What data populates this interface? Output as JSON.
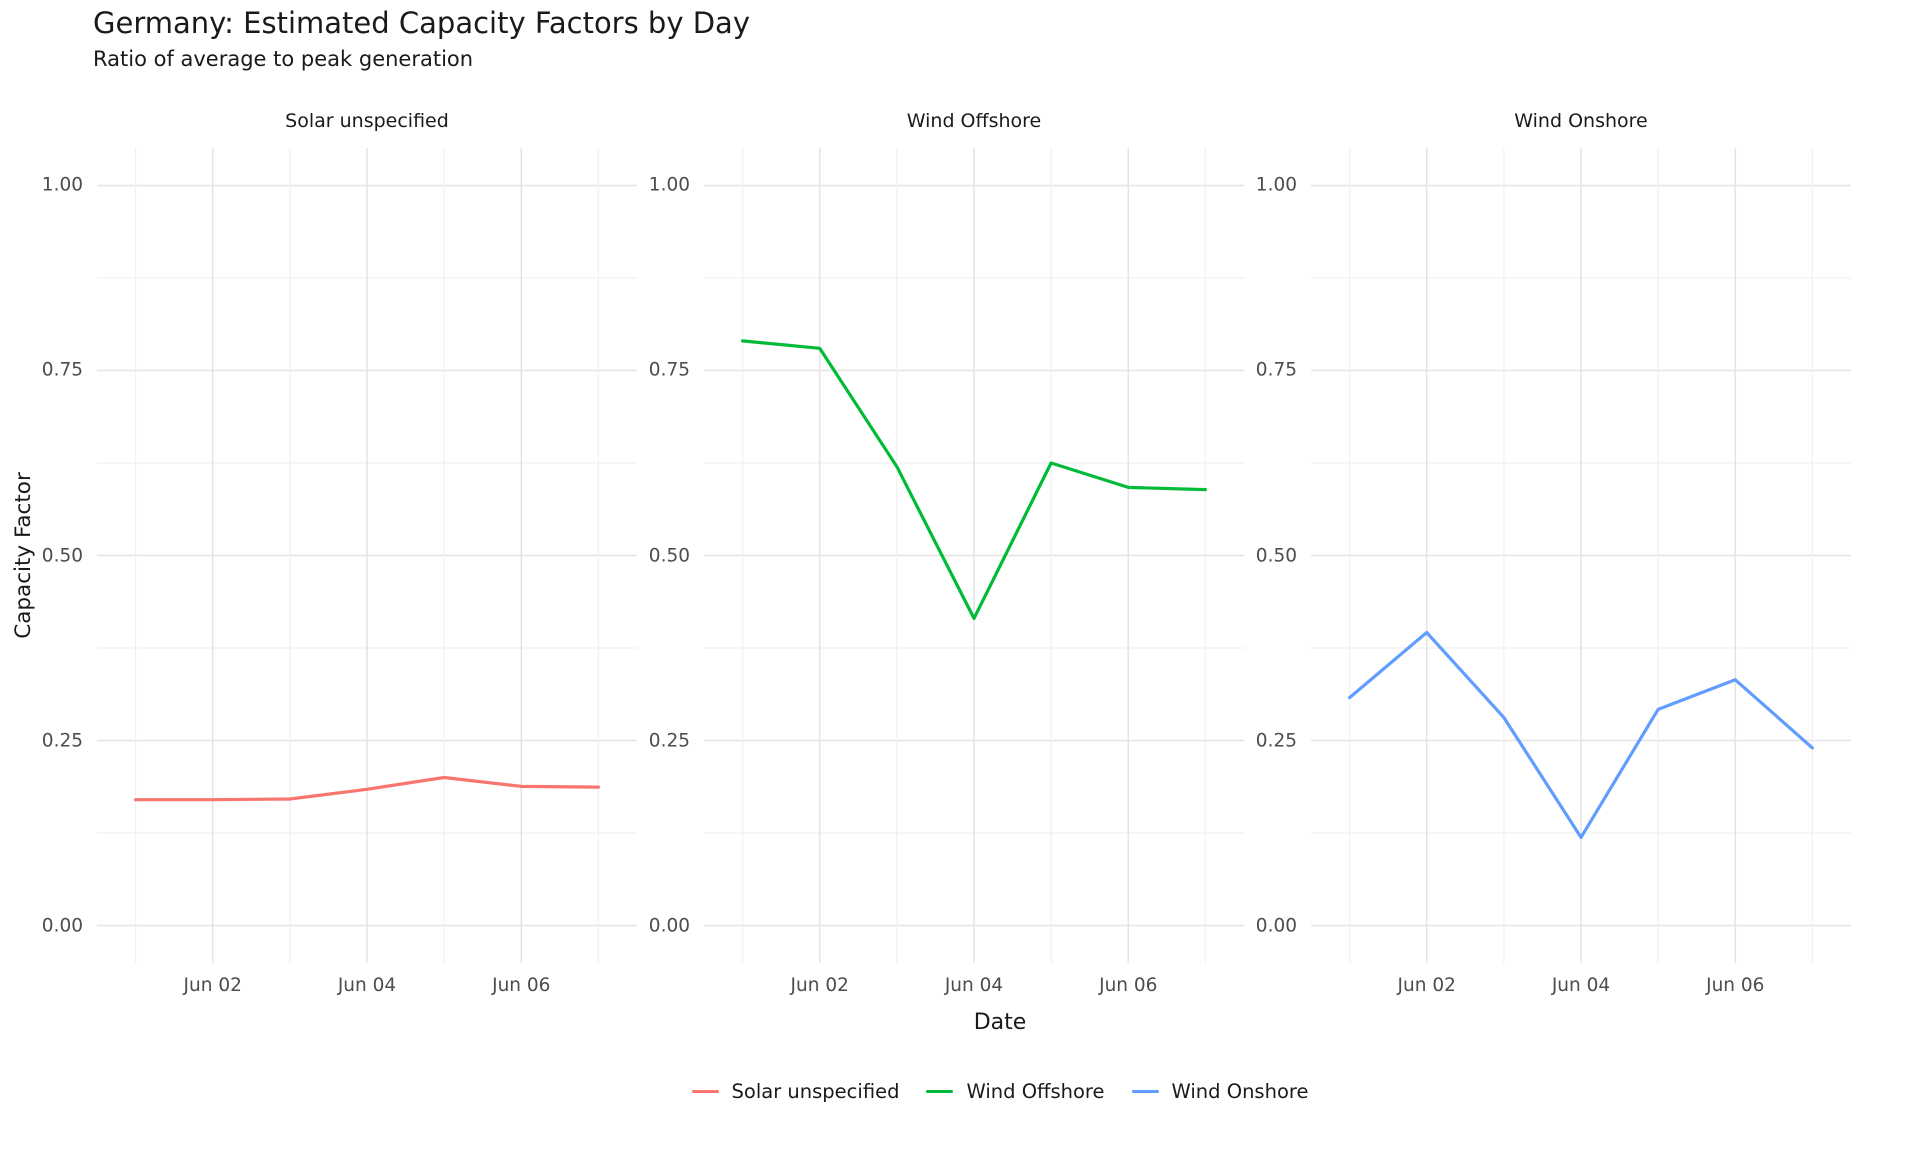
{
  "chart_data": {
    "type": "line",
    "title": "Germany: Estimated Capacity Factors by Day",
    "subtitle": "Ratio of average to peak generation",
    "xlabel": "Date",
    "ylabel": "Capacity Factor",
    "ylim": [
      0,
      1
    ],
    "grid": true,
    "legend_position": "bottom",
    "x": [
      "Jun 01",
      "Jun 02",
      "Jun 03",
      "Jun 04",
      "Jun 05",
      "Jun 06",
      "Jun 07"
    ],
    "y_ticks": [
      {
        "label": "1.00",
        "value": 1.0
      },
      {
        "label": "0.75",
        "value": 0.75
      },
      {
        "label": "0.50",
        "value": 0.5
      },
      {
        "label": "0.25",
        "value": 0.25
      },
      {
        "label": "0.00",
        "value": 0.0
      }
    ],
    "x_ticks": [
      {
        "label": "Jun 02",
        "index": 1
      },
      {
        "label": "Jun 04",
        "index": 3
      },
      {
        "label": "Jun 06",
        "index": 5
      }
    ],
    "facets": [
      {
        "name": "Solar unspecified",
        "color": "#F8766D",
        "values": [
          0.17,
          0.17,
          0.171,
          0.184,
          0.2,
          0.188,
          0.187
        ]
      },
      {
        "name": "Wind Offshore",
        "color": "#00BA38",
        "values": [
          0.79,
          0.78,
          0.62,
          0.415,
          0.625,
          0.592,
          0.589
        ]
      },
      {
        "name": "Wind Onshore",
        "color": "#619CFF",
        "values": [
          0.308,
          0.396,
          0.281,
          0.119,
          0.292,
          0.332,
          0.24
        ]
      }
    ]
  },
  "legend": {
    "items": [
      {
        "label": "Solar unspecified",
        "color": "#F8766D"
      },
      {
        "label": "Wind Offshore",
        "color": "#00BA38"
      },
      {
        "label": "Wind Onshore",
        "color": "#619CFF"
      }
    ]
  },
  "style": {
    "grid_major_color": "#e4e4e4",
    "grid_minor_color": "#f1f1f1",
    "tick_label_color": "#4d4d4d",
    "text_color": "#1a1a1a",
    "background": "#ffffff"
  }
}
